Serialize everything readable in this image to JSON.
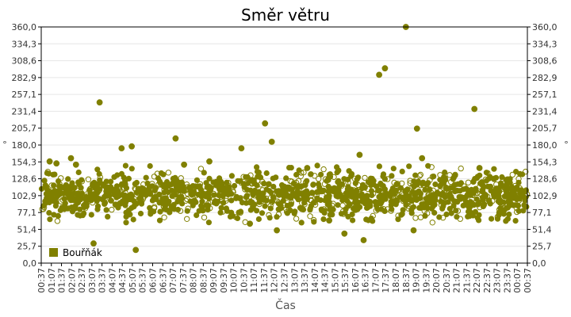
{
  "chart_data": {
    "type": "scatter",
    "title": "Směr větru",
    "xlabel": "Čas",
    "ylabel": "°",
    "ylim": [
      0,
      360
    ],
    "grid": true,
    "legend_position": "bottom-left",
    "color": "#808000",
    "y_ticks": [
      "0,0",
      "25,7",
      "51,4",
      "77,1",
      "102,9",
      "128,6",
      "154,3",
      "180,0",
      "205,7",
      "231,4",
      "257,1",
      "282,9",
      "308,6",
      "334,3",
      "360,0"
    ],
    "x_ticks": [
      "00:37",
      "01:07",
      "01:37",
      "02:07",
      "02:37",
      "03:07",
      "03:37",
      "04:07",
      "04:37",
      "05:07",
      "05:37",
      "06:07",
      "06:37",
      "07:07",
      "07:37",
      "08:07",
      "08:37",
      "09:07",
      "09:37",
      "10:07",
      "10:37",
      "11:07",
      "11:37",
      "12:07",
      "12:37",
      "13:07",
      "13:37",
      "14:07",
      "14:37",
      "15:07",
      "15:37",
      "16:07",
      "16:37",
      "17:07",
      "17:37",
      "18:07",
      "18:37",
      "19:07",
      "19:37",
      "20:07",
      "20:37",
      "21:07",
      "21:37",
      "22:07",
      "22:37",
      "23:07",
      "23:37",
      "00:07",
      "00:37"
    ],
    "series": [
      {
        "name": "Bouřňák",
        "points": [
          {
            "x": "01:02",
            "y": 155
          },
          {
            "x": "01:22",
            "y": 152
          },
          {
            "x": "02:05",
            "y": 160
          },
          {
            "x": "02:20",
            "y": 150
          },
          {
            "x": "03:12",
            "y": 30
          },
          {
            "x": "03:30",
            "y": 245
          },
          {
            "x": "04:35",
            "y": 175
          },
          {
            "x": "05:05",
            "y": 178
          },
          {
            "x": "05:17",
            "y": 20
          },
          {
            "x": "07:15",
            "y": 190
          },
          {
            "x": "07:40",
            "y": 150
          },
          {
            "x": "10:30",
            "y": 175
          },
          {
            "x": "11:40",
            "y": 213
          },
          {
            "x": "12:00",
            "y": 185
          },
          {
            "x": "12:15",
            "y": 50
          },
          {
            "x": "16:20",
            "y": 165
          },
          {
            "x": "16:32",
            "y": 35
          },
          {
            "x": "17:18",
            "y": 287
          },
          {
            "x": "17:35",
            "y": 297
          },
          {
            "x": "18:37",
            "y": 360
          },
          {
            "x": "19:00",
            "y": 50
          },
          {
            "x": "19:10",
            "y": 205
          },
          {
            "x": "19:25",
            "y": 160
          },
          {
            "x": "22:00",
            "y": 235
          },
          {
            "x": "22:15",
            "y": 145
          },
          {
            "x": "15:35",
            "y": 45
          },
          {
            "x": "10:55",
            "y": 60
          },
          {
            "x": "13:45",
            "y": 145
          },
          {
            "x": "08:55",
            "y": 155
          },
          {
            "x": "14:50",
            "y": 65
          }
        ],
        "bulk_summary": "Remaining ~1400 points lie mostly between about 70° and 140°, centred near 100°."
      }
    ]
  }
}
